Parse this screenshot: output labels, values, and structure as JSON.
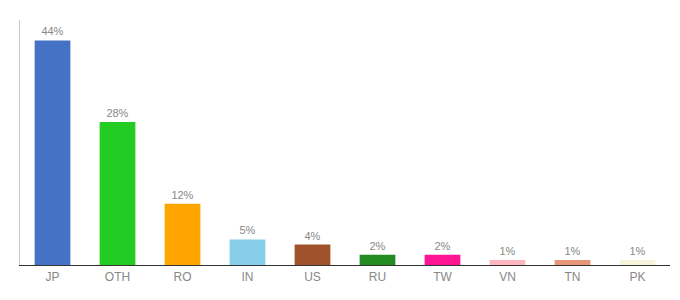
{
  "chart_data": {
    "type": "bar",
    "categories": [
      "JP",
      "OTH",
      "RO",
      "IN",
      "US",
      "RU",
      "TW",
      "VN",
      "TN",
      "PK"
    ],
    "values": [
      44,
      28,
      12,
      5,
      4,
      2,
      2,
      1,
      1,
      1
    ],
    "value_labels": [
      "44%",
      "28%",
      "12%",
      "5%",
      "4%",
      "2%",
      "2%",
      "1%",
      "1%",
      "1%"
    ],
    "colors": [
      "#4472C4",
      "#22CC22",
      "#FFA500",
      "#87CEEB",
      "#A0522D",
      "#228B22",
      "#FF1493",
      "#FFB6C1",
      "#E8967A",
      "#F5F5DC"
    ],
    "ylim": [
      0,
      48
    ],
    "grid": false,
    "data_labels": true,
    "tick_labels": "x"
  }
}
